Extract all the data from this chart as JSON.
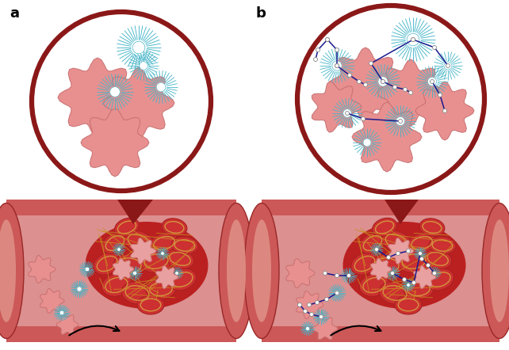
{
  "bg_color": "#ffffff",
  "vessel_outer": "#e07870",
  "vessel_wall": "#d4635a",
  "vessel_lumen": "#e8a09a",
  "vessel_lumen_inner": "#dc8880",
  "clot_bg": "#c03030",
  "rbc_face": "#cc3030",
  "rbc_edge": "#aa2020",
  "rbc_inner": "#e05040",
  "fibrin_color": "#d4a030",
  "platelet_color": "#e89090",
  "platelet_edge": "#c87070",
  "nano_color": "#45b5c8",
  "nano_center": "#ffffff",
  "nano_center_edge": "#45b5c8",
  "circle_border": "#8b1818",
  "polymer_color": "#1a1a8e",
  "polymer_node": "#ffffff",
  "polymer_node_edge": "#888888",
  "arrow_color": "#111111",
  "tri_color": "#8b1818"
}
